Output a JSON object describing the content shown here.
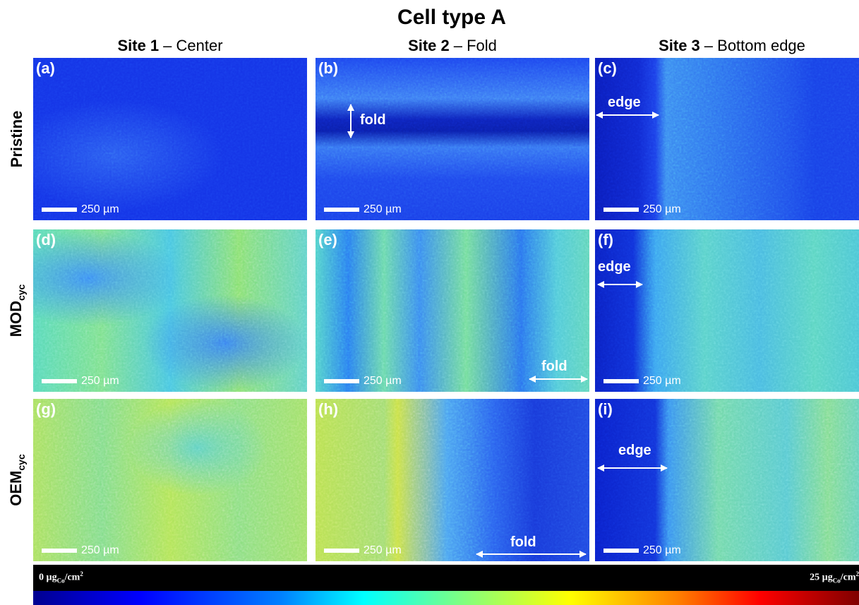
{
  "title": "Cell type A",
  "columns": [
    {
      "site": "Site 1",
      "location": "– Center"
    },
    {
      "site": "Site 2",
      "location": "– Fold"
    },
    {
      "site": "Site 3",
      "location": "– Bottom edge"
    }
  ],
  "rows": [
    {
      "label": "Pristine"
    },
    {
      "label": "MOD",
      "subscript": "cyc"
    },
    {
      "label": "OEM",
      "subscript": "cyc"
    }
  ],
  "panels": [
    {
      "label": "(a)",
      "scale_bar": "250 µm"
    },
    {
      "label": "(b)",
      "scale_bar": "250 µm",
      "annotation": "fold"
    },
    {
      "label": "(c)",
      "scale_bar": "250 µm",
      "annotation": "edge"
    },
    {
      "label": "(d)",
      "scale_bar": "250 µm"
    },
    {
      "label": "(e)",
      "scale_bar": "250 µm",
      "annotation": "fold"
    },
    {
      "label": "(f)",
      "scale_bar": "250 µm",
      "annotation": "edge"
    },
    {
      "label": "(g)",
      "scale_bar": "250 µm"
    },
    {
      "label": "(h)",
      "scale_bar": "250 µm",
      "annotation": "fold"
    },
    {
      "label": "(i)",
      "scale_bar": "250 µm",
      "annotation": "edge"
    }
  ],
  "colorbar": {
    "min": {
      "lead": "0 µg",
      "sub": "Co",
      "unit": "/cm",
      "sup": "2"
    },
    "max": {
      "lead": "25 µg",
      "sub": "Co",
      "unit": "/cm",
      "sup": "2"
    }
  }
}
